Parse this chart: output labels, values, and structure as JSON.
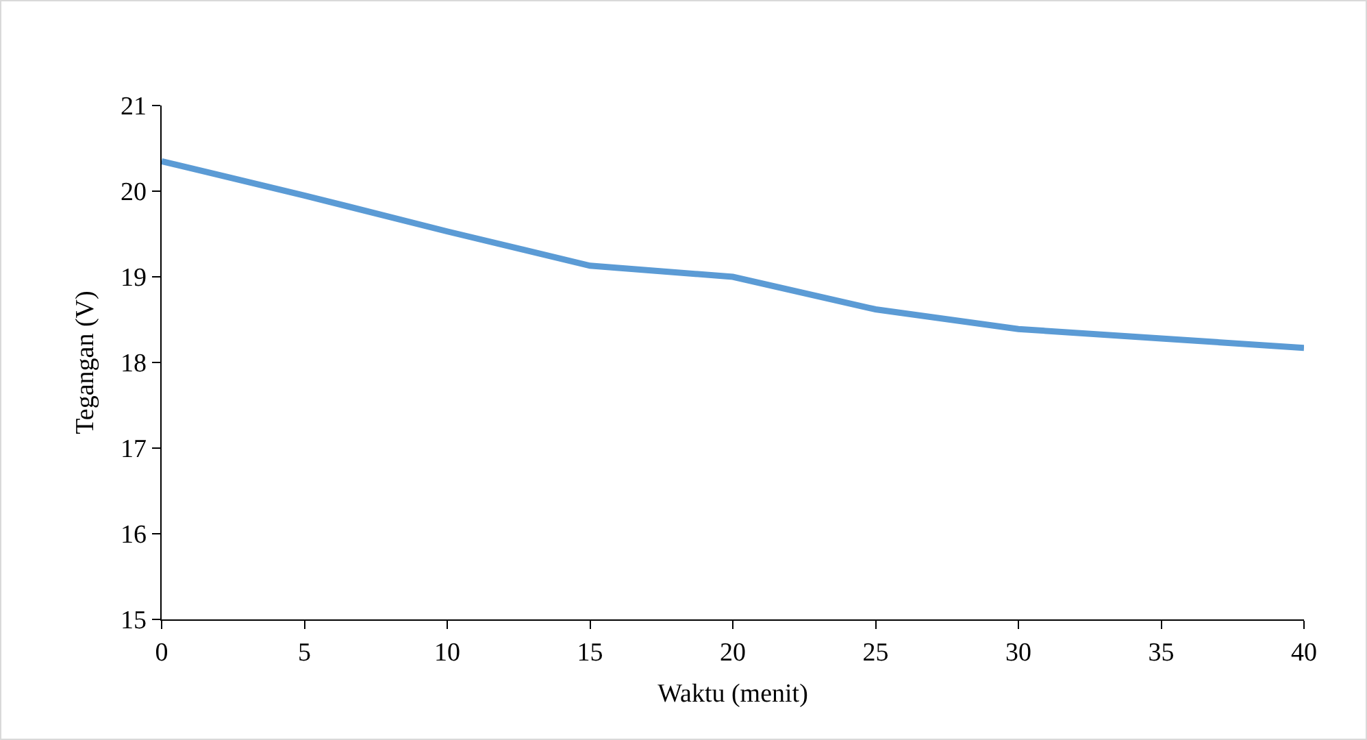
{
  "chart_data": {
    "type": "line",
    "xlabel": "Waktu (menit)",
    "ylabel": "Tegangan (V)",
    "x": [
      0,
      5,
      10,
      15,
      20,
      25,
      30,
      35,
      40
    ],
    "series": [
      {
        "color": "#5b9bd5",
        "values": [
          20.35,
          19.95,
          19.53,
          19.13,
          19.0,
          18.62,
          18.39,
          18.28,
          18.17
        ]
      }
    ],
    "xlim": [
      0,
      40
    ],
    "xticks": [
      0,
      5,
      10,
      15,
      20,
      25,
      30,
      35,
      40
    ],
    "ylim": [
      15,
      21
    ],
    "yticks": [
      15,
      16,
      17,
      18,
      19,
      20,
      21
    ],
    "grid": false,
    "marker": "none",
    "line_style": "solid"
  }
}
